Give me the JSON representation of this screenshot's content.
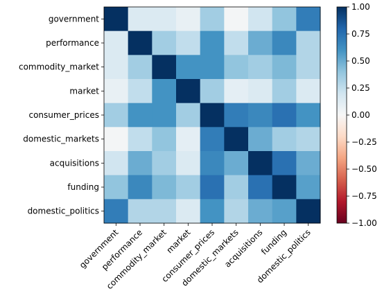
{
  "chart_data": {
    "type": "heatmap",
    "x_categories": [
      "government",
      "performance",
      "commodity_market",
      "market",
      "consumer_prices",
      "domestic_markets",
      "acquisitions",
      "funding",
      "domestic_politics"
    ],
    "y_categories": [
      "government",
      "performance",
      "commodity_market",
      "market",
      "consumer_prices",
      "domestic_markets",
      "acquisitions",
      "funding",
      "domestic_politics"
    ],
    "values": [
      [
        1,
        0.15,
        0.15,
        0.08,
        0.35,
        0.02,
        0.2,
        0.4,
        0.7
      ],
      [
        0.15,
        1,
        0.35,
        0.25,
        0.6,
        0.25,
        0.5,
        0.65,
        0.3
      ],
      [
        0.15,
        0.35,
        1,
        0.6,
        0.6,
        0.4,
        0.35,
        0.45,
        0.3
      ],
      [
        0.08,
        0.25,
        0.6,
        1,
        0.35,
        0.1,
        0.15,
        0.35,
        0.15
      ],
      [
        0.35,
        0.6,
        0.6,
        0.35,
        1,
        0.7,
        0.65,
        0.75,
        0.6
      ],
      [
        0.02,
        0.25,
        0.4,
        0.1,
        0.7,
        1,
        0.5,
        0.35,
        0.3
      ],
      [
        0.2,
        0.5,
        0.35,
        0.15,
        0.65,
        0.5,
        1,
        0.75,
        0.5
      ],
      [
        0.4,
        0.65,
        0.45,
        0.35,
        0.75,
        0.35,
        0.75,
        1,
        0.55
      ],
      [
        0.7,
        0.3,
        0.3,
        0.15,
        0.6,
        0.3,
        0.5,
        0.55,
        1
      ]
    ],
    "colormap": "RdBu",
    "zlim": [
      -1,
      1
    ],
    "colorbar_ticks": [
      {
        "value": 1,
        "label": "1.00"
      },
      {
        "value": 0.75,
        "label": "0.75"
      },
      {
        "value": 0.5,
        "label": "0.50"
      },
      {
        "value": 0.25,
        "label": "0.25"
      },
      {
        "value": 0,
        "label": "0.00"
      },
      {
        "value": -0.25,
        "label": "−0.25"
      },
      {
        "value": -0.5,
        "label": "−0.50"
      },
      {
        "value": -0.75,
        "label": "−0.75"
      },
      {
        "value": -1,
        "label": "−1.00"
      }
    ]
  }
}
